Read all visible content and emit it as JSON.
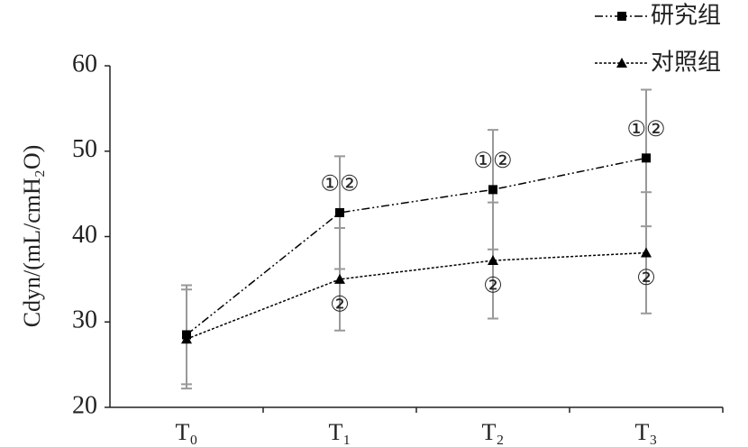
{
  "chart_data": {
    "type": "line",
    "y_label": "Cdyn/(mL/cmH₂O)",
    "categories": [
      "T₀",
      "T₁",
      "T₂",
      "T₃"
    ],
    "ylim": [
      20,
      60
    ],
    "yticks": [
      20,
      30,
      40,
      50,
      60
    ],
    "error_color": "#999999",
    "series": [
      {
        "name": "研究组",
        "color": "#000000",
        "marker": "square",
        "dash": "9,3,2,3,2,3",
        "values": [
          28.5,
          42.8,
          45.5,
          49.2
        ],
        "errors": [
          5.8,
          6.6,
          7.0,
          8.0
        ],
        "labels": [
          null,
          "①②",
          "①②",
          "①②"
        ],
        "label_side": "above"
      },
      {
        "name": "对照组",
        "color": "#000000",
        "marker": "triangle",
        "dash": "3,2",
        "values": [
          28.0,
          35.0,
          37.2,
          38.1
        ],
        "errors": [
          5.8,
          6.0,
          6.8,
          7.1
        ],
        "labels": [
          null,
          "②",
          "②",
          "②"
        ],
        "label_side": "below"
      }
    ]
  }
}
